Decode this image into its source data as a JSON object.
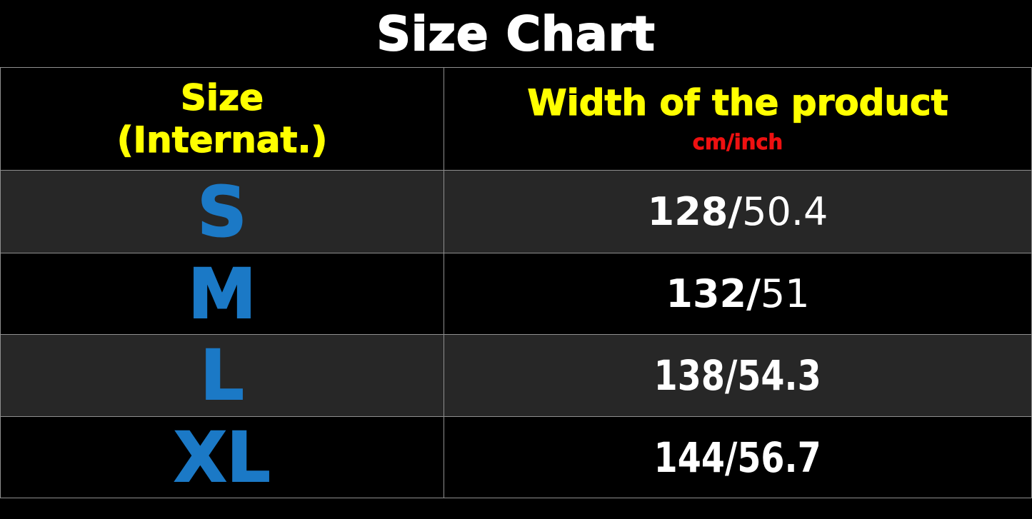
{
  "title": "Size Chart",
  "table": {
    "header": {
      "size_col_line1": "Size",
      "size_col_line2": "(Internat.)",
      "width_col_title": "Width of the product",
      "width_col_units": "cm/inch"
    },
    "rows": [
      {
        "size": "S",
        "width_cm": "128/",
        "width_inch": "50.4"
      },
      {
        "size": "M",
        "width_cm": "132/",
        "width_inch": "51"
      },
      {
        "size": "L",
        "width_cm": "138/",
        "width_inch": "54.3"
      },
      {
        "size": "XL",
        "width_cm": "144/",
        "width_inch": "56.7"
      }
    ]
  },
  "chart_data": {
    "type": "table",
    "title": "Size Chart",
    "columns": [
      "Size (Internat.)",
      "Width of the product cm/inch"
    ],
    "rows": [
      [
        "S",
        "128/50.4"
      ],
      [
        "M",
        "132/51"
      ],
      [
        "L",
        "138/54.3"
      ],
      [
        "XL",
        "144/56.7"
      ]
    ],
    "sizes": [
      "S",
      "M",
      "L",
      "XL"
    ],
    "width_cm": [
      128,
      132,
      138,
      144
    ],
    "width_inch": [
      50.4,
      51,
      54.3,
      56.7
    ]
  },
  "colors": {
    "background": "#000000",
    "row_alt_background": "#272727",
    "grid_line": "#8f8f8f",
    "header_yellow": "#ffff00",
    "units_red": "#ee1111",
    "size_blue": "#1b79c6",
    "text_white": "#ffffff"
  }
}
